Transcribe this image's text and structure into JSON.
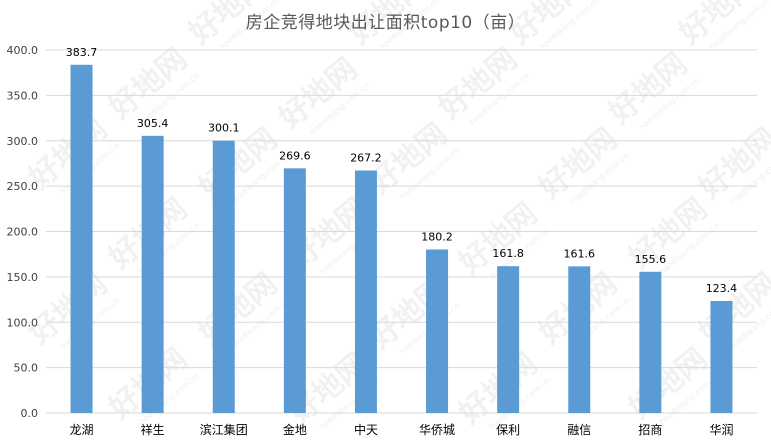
{
  "chart_data": {
    "type": "bar",
    "title": "房企竞得地块出让面积top10（亩）",
    "categories": [
      "龙湖",
      "祥生",
      "滨江集团",
      "金地",
      "中天",
      "华侨城",
      "保利",
      "融信",
      "招商",
      "华润"
    ],
    "values": [
      383.7,
      305.4,
      300.1,
      269.6,
      267.2,
      180.2,
      161.8,
      161.6,
      155.6,
      123.4
    ],
    "value_labels": [
      "383.7",
      "305.4",
      "300.1",
      "269.6",
      "267.2",
      "180.2",
      "161.8",
      "161.6",
      "155.6",
      "123.4"
    ],
    "y_ticks": [
      "0.0",
      "50.0",
      "100.0",
      "150.0",
      "200.0",
      "250.0",
      "300.0",
      "350.0",
      "400.0"
    ],
    "ylim": [
      0,
      400
    ],
    "grid": true,
    "legend": "none",
    "bar_color": "#5b9bd5",
    "grid_color": "#d9d9d9"
  },
  "watermark": {
    "text": "好地网",
    "subtext": "haodiwang.com.cn"
  }
}
